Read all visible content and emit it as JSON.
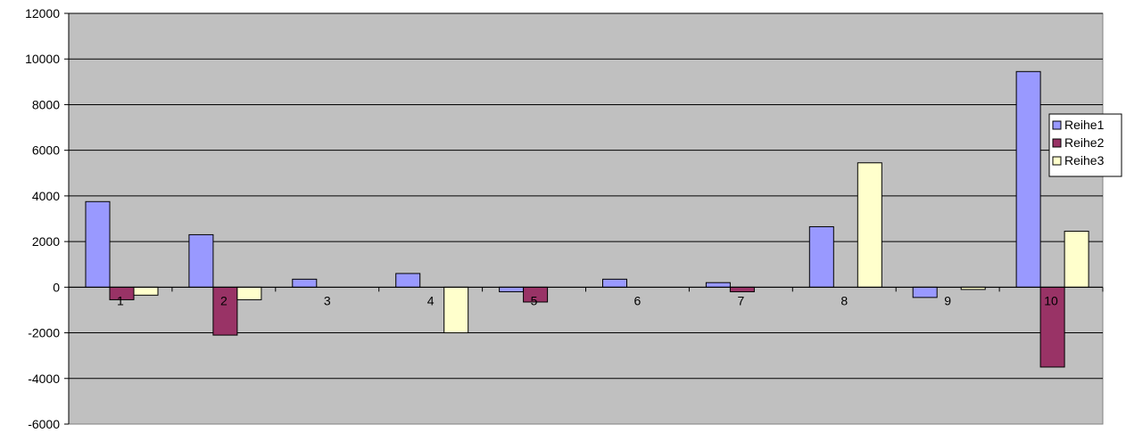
{
  "chart_data": {
    "type": "bar",
    "categories": [
      "1",
      "2",
      "3",
      "4",
      "5",
      "6",
      "7",
      "8",
      "9",
      "10"
    ],
    "series": [
      {
        "name": "Reihe1",
        "color": "#9999ff",
        "values": [
          3750,
          2300,
          350,
          600,
          -200,
          350,
          200,
          2650,
          -450,
          9450
        ]
      },
      {
        "name": "Reihe2",
        "color": "#993366",
        "values": [
          -550,
          -2100,
          0,
          0,
          -650,
          0,
          -200,
          0,
          0,
          -3500
        ]
      },
      {
        "name": "Reihe3",
        "color": "#ffffcc",
        "values": [
          -350,
          -550,
          0,
          -2000,
          0,
          0,
          0,
          5450,
          -100,
          2450
        ]
      }
    ],
    "yticks": [
      "12000",
      "10000",
      "8000",
      "6000",
      "4000",
      "2000",
      "0",
      "-2000",
      "-4000",
      "-6000"
    ],
    "ylim": [
      -6000,
      12000
    ],
    "grid": true,
    "plot_background": "#c0c0c0",
    "legend_position": "right",
    "title": "",
    "xlabel": "",
    "ylabel": ""
  }
}
